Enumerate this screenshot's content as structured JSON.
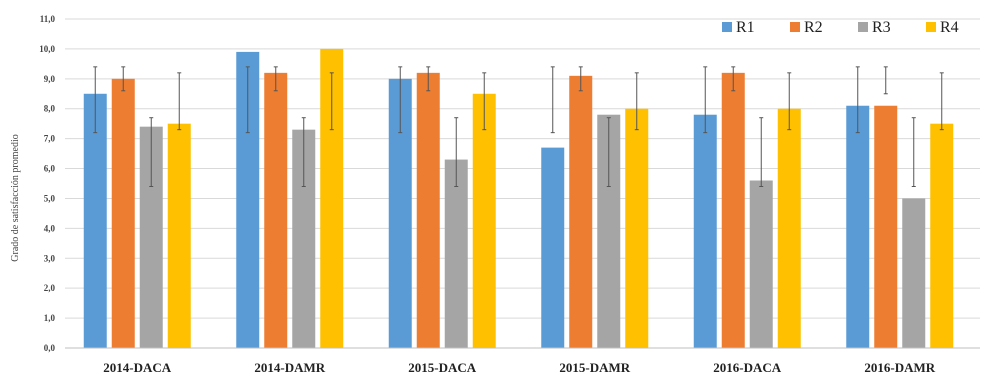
{
  "chart_data": {
    "type": "bar",
    "ylabel": "Grado de satisfacción promedio",
    "ylim": [
      0,
      11
    ],
    "yticks": [
      "0,0",
      "1,0",
      "2,0",
      "3,0",
      "4,0",
      "5,0",
      "6,0",
      "7,0",
      "8,0",
      "9,0",
      "10,0",
      "11,0"
    ],
    "grid": true,
    "legend_position": "top-right",
    "categories": [
      "2014-DACA",
      "2014-DAMR",
      "2015-DACA",
      "2015-DAMR",
      "2016-DACA",
      "2016-DAMR"
    ],
    "series": [
      {
        "name": "R1",
        "color": "#5B9BD5",
        "values": [
          8.5,
          9.9,
          9.0,
          6.7,
          7.8,
          8.1
        ],
        "error_low": [
          7.2,
          7.2,
          7.2,
          7.2,
          7.2,
          7.2
        ],
        "error_high": [
          9.4,
          9.4,
          9.4,
          9.4,
          9.4,
          9.4
        ]
      },
      {
        "name": "R2",
        "color": "#ED7D31",
        "values": [
          9.0,
          9.2,
          9.2,
          9.1,
          9.2,
          8.1
        ],
        "error_low": [
          8.6,
          8.6,
          8.6,
          8.6,
          8.6,
          8.5
        ],
        "error_high": [
          9.4,
          9.4,
          9.4,
          9.4,
          9.4,
          9.4
        ]
      },
      {
        "name": "R3",
        "color": "#A5A5A5",
        "values": [
          7.4,
          7.3,
          6.3,
          7.8,
          5.6,
          5.0
        ],
        "error_low": [
          5.4,
          5.4,
          5.4,
          5.4,
          5.4,
          5.4
        ],
        "error_high": [
          7.7,
          7.7,
          7.7,
          7.7,
          7.7,
          7.7
        ]
      },
      {
        "name": "R4",
        "color": "#FFC000",
        "values": [
          7.5,
          10.0,
          8.5,
          8.0,
          8.0,
          7.5
        ],
        "error_low": [
          7.3,
          7.3,
          7.3,
          7.3,
          7.3,
          7.3
        ],
        "error_high": [
          9.2,
          9.2,
          9.2,
          9.2,
          9.2,
          9.2
        ]
      }
    ]
  }
}
